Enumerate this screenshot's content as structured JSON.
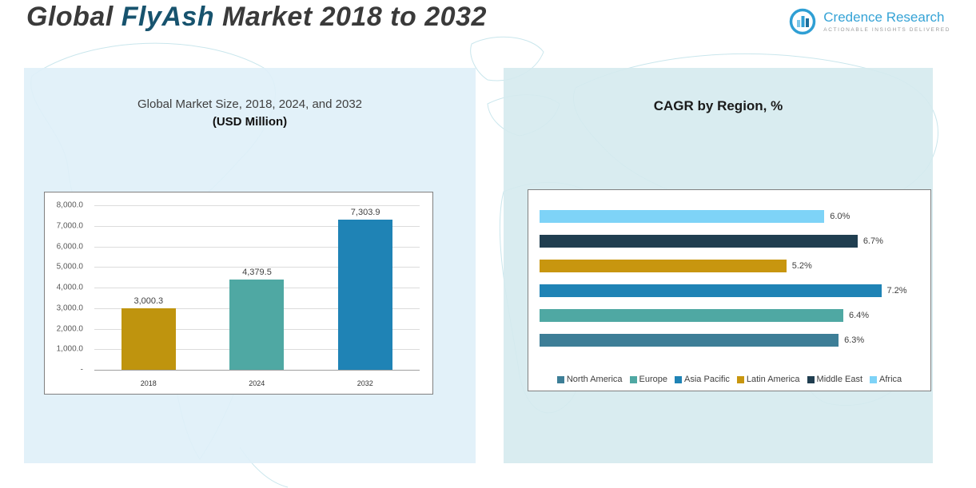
{
  "header": {
    "title_prefix": "Global ",
    "title_em": "FlyAsh",
    "title_suffix": " Market 2018 to 2032",
    "logo": {
      "name": "Credence Research",
      "tagline": "Actionable Insights Delivered",
      "icon": "bar-chart-circle-icon",
      "brand_color": "#35a3d6"
    }
  },
  "left_panel": {
    "title_line1": "Global Market Size, 2018, 2024, and 2032",
    "title_line2": "(USD Million)"
  },
  "right_panel": {
    "title": "CAGR by Region, %"
  },
  "colors": {
    "panel_left_bg": "#dff0f8",
    "panel_right_bg": "#d5eaee",
    "map_outline": "#9ed2de"
  },
  "chart_data": [
    {
      "type": "bar",
      "title": "Global Market Size, 2018, 2024, and 2032 (USD Million)",
      "categories": [
        "2018",
        "2024",
        "2032"
      ],
      "values": [
        3000.3,
        4379.5,
        7303.9
      ],
      "value_labels": [
        "3,000.3",
        "4,379.5",
        "7,303.9"
      ],
      "bar_colors": [
        "#bf940e",
        "#4fa8a3",
        "#1f83b5"
      ],
      "ylabel": "USD Million",
      "ylim": [
        0,
        8000
      ],
      "ytick_labels": [
        "8,000.0",
        "7,000.0",
        "6,000.0",
        "5,000.0",
        "4,000.0",
        "3,000.0",
        "2,000.0",
        "1,000.0",
        "-"
      ],
      "grid": true,
      "legend_position": "none"
    },
    {
      "type": "bar",
      "orientation": "horizontal",
      "title": "CAGR by Region, %",
      "series_order_top_to_bottom": [
        "Africa",
        "Middle East",
        "Latin America",
        "Asia Pacific",
        "Europe",
        "North America"
      ],
      "values_top_to_bottom": [
        6.0,
        6.7,
        5.2,
        7.2,
        6.4,
        6.3
      ],
      "value_labels": [
        "6.0%",
        "6.7%",
        "5.2%",
        "7.2%",
        "6.4%",
        "6.3%"
      ],
      "colors_top_to_bottom": [
        "#7ed3f7",
        "#203e50",
        "#c8960f",
        "#1f83b5",
        "#4fa8a3",
        "#3d7e97"
      ],
      "xlim": [
        0,
        8
      ],
      "grid": false,
      "legend": [
        "North America",
        "Europe",
        "Asia Pacific",
        "Latin America",
        "Middle East",
        "Africa"
      ],
      "legend_colors": [
        "#3d7e97",
        "#4fa8a3",
        "#1f83b5",
        "#c8960f",
        "#203e50",
        "#7ed3f7"
      ],
      "legend_position": "bottom"
    }
  ]
}
